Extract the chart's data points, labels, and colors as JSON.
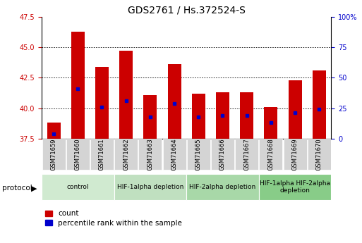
{
  "title": "GDS2761 / Hs.372524-S",
  "samples": [
    "GSM71659",
    "GSM71660",
    "GSM71661",
    "GSM71662",
    "GSM71663",
    "GSM71664",
    "GSM71665",
    "GSM71666",
    "GSM71667",
    "GSM71668",
    "GSM71669",
    "GSM71670"
  ],
  "bar_values": [
    38.8,
    46.3,
    43.4,
    44.7,
    41.1,
    43.6,
    41.2,
    41.3,
    41.3,
    40.1,
    42.3,
    43.1
  ],
  "bar_base": 37.5,
  "blue_dot_values": [
    37.9,
    41.6,
    40.1,
    40.6,
    39.3,
    40.4,
    39.3,
    39.4,
    39.4,
    38.8,
    39.6,
    39.9
  ],
  "bar_color": "#cc0000",
  "blue_color": "#0000cc",
  "left_ylim": [
    37.5,
    47.5
  ],
  "left_yticks": [
    37.5,
    40.0,
    42.5,
    45.0,
    47.5
  ],
  "right_ylim": [
    0,
    100
  ],
  "right_yticks": [
    0,
    25,
    50,
    75,
    100
  ],
  "right_yticklabels": [
    "0",
    "25",
    "50",
    "75",
    "100%"
  ],
  "grid_values": [
    40.0,
    42.5,
    45.0
  ],
  "protocol_groups": [
    {
      "label": "control",
      "start": 0,
      "end": 2,
      "color": "#d0ead0"
    },
    {
      "label": "HIF-1alpha depletion",
      "start": 3,
      "end": 5,
      "color": "#c0e0c0"
    },
    {
      "label": "HIF-2alpha depletion",
      "start": 6,
      "end": 8,
      "color": "#a8d8a8"
    },
    {
      "label": "HIF-1alpha HIF-2alpha\ndepletion",
      "start": 9,
      "end": 11,
      "color": "#88cc88"
    }
  ],
  "legend_count_label": "count",
  "legend_pct_label": "percentile rank within the sample",
  "protocol_label": "protocol",
  "bar_width": 0.55,
  "tick_fontsize": 7,
  "label_fontsize": 7,
  "title_fontsize": 10
}
